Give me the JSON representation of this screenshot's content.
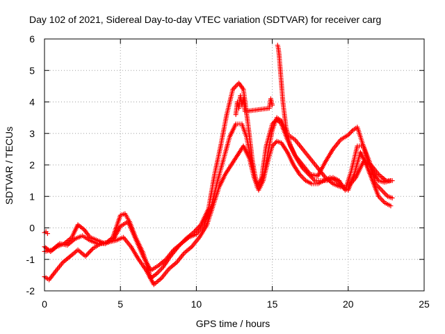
{
  "chart_data": {
    "type": "scatter",
    "title": "Day 102 of 2021, Sidereal Day-to-day VTEC variation (SDTVAR) for receiver carg",
    "xlabel": "GPS time / hours",
    "ylabel": "SDTVAR / TECUs",
    "xlim": [
      0,
      25
    ],
    "ylim": [
      -2,
      6
    ],
    "xticks": [
      0,
      5,
      10,
      15,
      20,
      25
    ],
    "yticks": [
      -2,
      -1,
      0,
      1,
      2,
      3,
      4,
      5,
      6
    ],
    "xtick_labels": [
      "0",
      "5",
      "10",
      "15",
      "20",
      "25"
    ],
    "ytick_labels": [
      "-2",
      "-1",
      "0",
      "1",
      "2",
      "3",
      "4",
      "5",
      "6"
    ],
    "grid": true,
    "marker": "+",
    "color": "#ff0000",
    "series": [
      {
        "name": "track-1",
        "x": [
          0.0,
          0.4,
          0.8,
          1.3,
          1.8,
          2.2,
          2.6,
          3.0,
          3.5,
          4.0,
          4.5,
          5.0,
          5.3,
          5.6,
          6.0,
          6.5,
          7.0,
          7.4,
          7.8,
          8.3,
          8.8,
          9.3,
          9.8,
          10.3,
          10.8,
          11.2,
          11.6,
          12.0,
          12.4,
          12.8,
          13.1,
          13.4,
          13.7,
          14.0,
          14.3,
          14.6,
          15.0,
          15.3,
          15.6,
          16.0,
          16.5,
          17.0,
          17.5,
          18.0,
          18.5,
          19.0,
          19.5,
          20.0,
          20.3,
          20.6,
          21.0,
          21.3,
          21.6,
          22.0,
          22.4,
          22.8
        ],
        "y": [
          -0.6,
          -0.75,
          -0.6,
          -0.5,
          -0.3,
          0.1,
          -0.05,
          -0.3,
          -0.4,
          -0.5,
          -0.3,
          0.4,
          0.45,
          0.2,
          -0.3,
          -0.8,
          -1.6,
          -1.45,
          -1.25,
          -0.9,
          -0.6,
          -0.35,
          -0.15,
          0.1,
          0.6,
          1.7,
          2.6,
          3.6,
          4.4,
          4.6,
          4.4,
          3.3,
          2.1,
          1.3,
          1.6,
          2.6,
          3.3,
          3.45,
          3.3,
          2.8,
          2.3,
          2.0,
          1.7,
          1.65,
          2.1,
          2.5,
          2.8,
          2.95,
          3.1,
          3.2,
          2.6,
          2.1,
          1.8,
          1.5,
          1.45,
          1.5
        ]
      },
      {
        "name": "track-2",
        "x": [
          0.0,
          0.5,
          1.0,
          1.5,
          2.0,
          2.5,
          3.0,
          3.5,
          4.0,
          4.5,
          5.0,
          5.5,
          6.0,
          6.5,
          7.0,
          7.5,
          8.0,
          8.5,
          9.0,
          9.5,
          10.0,
          10.5,
          11.0,
          11.4,
          11.8,
          12.2,
          12.6,
          13.0,
          13.3,
          13.6,
          13.9,
          14.2,
          14.5,
          14.8,
          15.0,
          15.3,
          15.6,
          15.9,
          16.2,
          16.6,
          17.0,
          17.4,
          17.8,
          18.2,
          18.6,
          19.0,
          19.4,
          19.8,
          20.2,
          20.6,
          21.0,
          21.4,
          21.8,
          22.2,
          22.6,
          22.9
        ],
        "y": [
          -0.75,
          -0.7,
          -0.5,
          -0.55,
          -0.35,
          -0.25,
          -0.4,
          -0.5,
          -0.5,
          -0.4,
          0.05,
          0.2,
          -0.35,
          -0.9,
          -1.35,
          -1.2,
          -1.0,
          -0.7,
          -0.5,
          -0.3,
          -0.2,
          0.1,
          0.7,
          1.5,
          2.2,
          2.9,
          3.3,
          3.3,
          2.9,
          2.2,
          1.5,
          1.3,
          1.8,
          2.6,
          3.1,
          3.5,
          3.4,
          3.1,
          2.6,
          2.2,
          1.9,
          1.7,
          1.5,
          1.5,
          1.5,
          1.6,
          1.5,
          1.2,
          1.8,
          2.6,
          2.6,
          2.1,
          1.4,
          1.2,
          1.0,
          0.95
        ]
      },
      {
        "name": "track-3",
        "x": [
          0.0,
          0.3,
          0.7,
          1.2,
          1.7,
          2.2,
          2.7,
          3.2,
          3.7,
          4.2,
          4.7,
          5.2,
          5.7,
          6.2,
          6.7,
          7.2,
          7.7,
          8.2,
          8.7,
          9.2,
          9.7,
          10.2,
          10.7,
          11.1,
          11.5,
          11.9,
          12.3,
          12.7,
          13.1,
          13.5,
          13.8,
          14.1,
          14.4,
          14.7,
          15.0,
          15.3,
          15.6,
          16.0,
          16.4,
          16.8,
          17.2,
          17.6,
          18.0,
          18.4,
          18.8,
          19.2,
          19.6,
          20.0,
          20.4,
          20.8,
          21.2,
          21.6,
          22.0,
          22.4,
          22.8
        ],
        "y": [
          -1.55,
          -1.65,
          -1.4,
          -1.1,
          -0.9,
          -0.7,
          -0.9,
          -0.65,
          -0.5,
          -0.45,
          -0.4,
          -0.3,
          -0.6,
          -1.0,
          -1.35,
          -1.8,
          -1.6,
          -1.3,
          -1.1,
          -0.8,
          -0.6,
          -0.3,
          0.1,
          0.7,
          1.3,
          1.7,
          2.0,
          2.3,
          2.6,
          2.2,
          1.6,
          1.2,
          1.5,
          2.1,
          2.6,
          2.75,
          2.7,
          2.4,
          2.0,
          1.7,
          1.5,
          1.4,
          1.4,
          1.5,
          1.6,
          1.5,
          1.3,
          1.2,
          1.7,
          2.4,
          2.0,
          1.5,
          1.0,
          0.8,
          0.7
        ]
      },
      {
        "name": "track-4",
        "x": [
          15.35,
          15.4,
          15.45,
          15.5,
          15.55,
          15.6,
          15.65,
          15.7,
          15.75,
          15.8,
          15.85,
          15.9,
          16.0,
          16.2,
          16.5,
          17.0,
          17.5,
          18.0,
          18.5,
          19.0,
          19.5,
          20.0,
          20.5,
          21.0,
          21.5,
          22.0,
          22.5,
          22.9
        ],
        "y": [
          5.8,
          5.7,
          5.5,
          5.2,
          4.9,
          4.6,
          4.3,
          4.0,
          3.8,
          3.6,
          3.4,
          3.2,
          3.0,
          2.9,
          2.8,
          2.5,
          2.2,
          1.9,
          1.6,
          1.4,
          1.3,
          1.3,
          1.6,
          2.1,
          2.0,
          1.7,
          1.5,
          1.5
        ]
      },
      {
        "name": "track-5",
        "x": [
          12.6,
          12.7,
          12.8,
          12.9,
          13.0,
          13.1,
          13.2,
          14.8,
          14.9,
          15.0
        ],
        "y": [
          3.6,
          4.0,
          3.8,
          4.2,
          3.9,
          4.1,
          3.7,
          3.8,
          4.1,
          3.9
        ]
      },
      {
        "name": "track-6",
        "x": [
          0.0,
          0.1,
          0.2
        ],
        "y": [
          -0.15,
          -0.12,
          -0.18
        ]
      }
    ]
  }
}
